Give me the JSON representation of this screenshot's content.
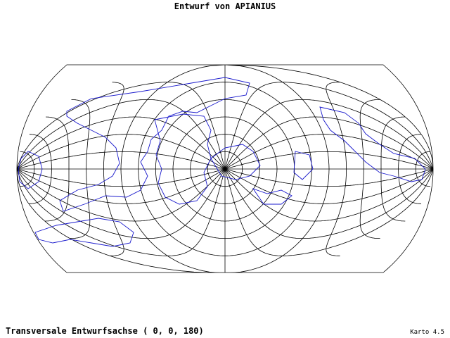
{
  "title": "Entwurf von APIANIUS",
  "caption": "Transversale Entwurfsachse ( 0, 0, 180)",
  "version": "Karto 4.5"
}
